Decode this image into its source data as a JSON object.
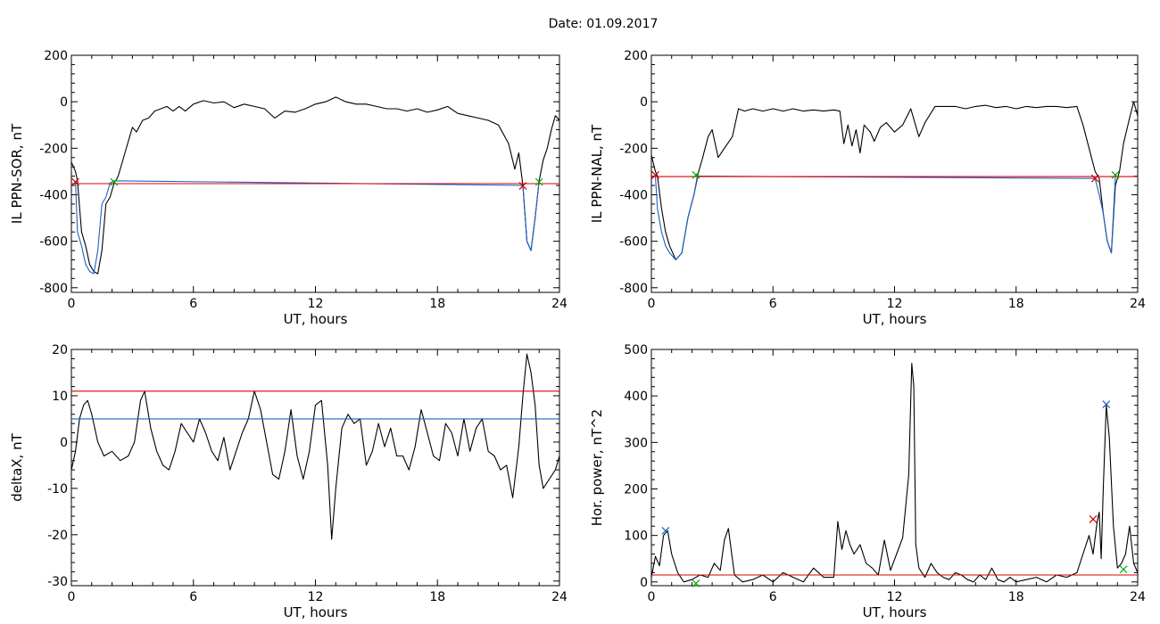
{
  "title": "Date:  01.09.2017",
  "chart_data": [
    {
      "type": "line",
      "ylabel": "IL PPN-SOR, nT",
      "xlabel": "UT, hours",
      "xlim": [
        0,
        24
      ],
      "ylim": [
        -820,
        200
      ],
      "xticks": [
        0,
        6,
        12,
        18,
        24
      ],
      "yticks": [
        200,
        0,
        -200,
        -400,
        -600,
        -800
      ],
      "series": [
        {
          "color": "#000000",
          "x": [
            0.0,
            0.2,
            0.3,
            0.5,
            0.7,
            0.9,
            1.1,
            1.3,
            1.5,
            1.7,
            1.9,
            2.1,
            2.3,
            2.5,
            2.8,
            3.0,
            3.2,
            3.5,
            3.8,
            4.1,
            4.4,
            4.7,
            5.0,
            5.3,
            5.6,
            6.0,
            6.5,
            7.0,
            7.5,
            8.0,
            8.5,
            9.0,
            9.5,
            10.0,
            10.5,
            11.0,
            11.5,
            12.0,
            12.5,
            13.0,
            13.5,
            14.0,
            14.5,
            15.0,
            15.5,
            16.0,
            16.5,
            17.0,
            17.5,
            18.0,
            18.5,
            19.0,
            19.5,
            20.0,
            20.5,
            21.0,
            21.5,
            21.8,
            22.0,
            22.2,
            22.4,
            22.6,
            22.8,
            23.0,
            23.2,
            23.4,
            23.6,
            23.8,
            24.0
          ],
          "y": [
            -260,
            -300,
            -340,
            -560,
            -620,
            -700,
            -730,
            -740,
            -640,
            -440,
            -410,
            -350,
            -320,
            -260,
            -170,
            -110,
            -130,
            -80,
            -70,
            -40,
            -30,
            -20,
            -40,
            -20,
            -40,
            -10,
            5,
            -5,
            0,
            -25,
            -10,
            -20,
            -30,
            -70,
            -40,
            -45,
            -30,
            -10,
            0,
            20,
            0,
            -10,
            -10,
            -20,
            -30,
            -30,
            -40,
            -30,
            -45,
            -35,
            -20,
            -50,
            -60,
            -70,
            -80,
            -100,
            -180,
            -290,
            -220,
            -360,
            -600,
            -640,
            -500,
            -340,
            -250,
            -200,
            -120,
            -60,
            -80
          ]
        },
        {
          "color": "#1f5fc8",
          "x": [
            0.2,
            0.3,
            0.5,
            0.7,
            0.9,
            1.1,
            1.3,
            1.5,
            1.7,
            1.9,
            2.1,
            22.2,
            22.4,
            22.6,
            22.8,
            23.0
          ],
          "y": [
            -340,
            -560,
            -620,
            -700,
            -730,
            -740,
            -640,
            -440,
            -410,
            -350,
            -340,
            -360,
            -600,
            -640,
            -500,
            -340
          ]
        },
        {
          "color": "#dd0000",
          "x": [
            0,
            24
          ],
          "y": [
            -352,
            -352
          ]
        }
      ],
      "markers": [
        {
          "x": 0.2,
          "y": -345,
          "color": "#cc0000"
        },
        {
          "x": 2.1,
          "y": -345,
          "color": "#00aa00"
        },
        {
          "x": 22.2,
          "y": -362,
          "color": "#cc0000"
        },
        {
          "x": 23.0,
          "y": -345,
          "color": "#00aa00"
        }
      ]
    },
    {
      "type": "line",
      "ylabel": "IL PPN-NAL, nT",
      "xlabel": "UT, hours",
      "xlim": [
        0,
        24
      ],
      "ylim": [
        -820,
        200
      ],
      "xticks": [
        0,
        6,
        12,
        18,
        24
      ],
      "yticks": [
        200,
        0,
        -200,
        -400,
        -600,
        -800
      ],
      "series": [
        {
          "color": "#000000",
          "x": [
            0.0,
            0.2,
            0.3,
            0.5,
            0.7,
            0.9,
            1.2,
            1.5,
            1.8,
            2.1,
            2.3,
            2.5,
            2.8,
            3.0,
            3.3,
            3.6,
            4.0,
            4.3,
            4.6,
            5.0,
            5.5,
            6.0,
            6.5,
            7.0,
            7.5,
            8.0,
            8.5,
            9.0,
            9.3,
            9.5,
            9.7,
            9.9,
            10.1,
            10.3,
            10.5,
            10.8,
            11.0,
            11.3,
            11.6,
            12.0,
            12.4,
            12.8,
            13.2,
            13.5,
            14.0,
            14.5,
            15.0,
            15.5,
            16.0,
            16.5,
            17.0,
            17.5,
            18.0,
            18.5,
            19.0,
            19.5,
            20.0,
            20.5,
            21.0,
            21.3,
            21.6,
            21.9,
            22.1,
            22.3,
            22.5,
            22.7,
            22.9,
            23.1,
            23.3,
            23.6,
            23.8,
            24.0
          ],
          "y": [
            -230,
            -300,
            -320,
            -460,
            -560,
            -620,
            -680,
            -650,
            -500,
            -400,
            -310,
            -250,
            -150,
            -120,
            -240,
            -200,
            -150,
            -30,
            -40,
            -30,
            -40,
            -30,
            -40,
            -30,
            -40,
            -35,
            -40,
            -35,
            -40,
            -180,
            -100,
            -190,
            -120,
            -220,
            -100,
            -130,
            -170,
            -110,
            -90,
            -130,
            -100,
            -30,
            -150,
            -90,
            -20,
            -20,
            -20,
            -30,
            -20,
            -15,
            -25,
            -20,
            -30,
            -20,
            -25,
            -20,
            -20,
            -25,
            -20,
            -100,
            -200,
            -300,
            -330,
            -480,
            -600,
            -650,
            -360,
            -300,
            -180,
            -70,
            0,
            -60
          ]
        },
        {
          "color": "#1f5fc8",
          "x": [
            0.2,
            0.3,
            0.5,
            0.7,
            0.9,
            1.2,
            1.5,
            1.8,
            2.1,
            2.3,
            21.9,
            22.1,
            22.3,
            22.5,
            22.7,
            22.9
          ],
          "y": [
            -320,
            -460,
            -560,
            -620,
            -650,
            -680,
            -650,
            -500,
            -400,
            -320,
            -330,
            -400,
            -480,
            -600,
            -650,
            -320
          ]
        },
        {
          "color": "#dd0000",
          "x": [
            0,
            24
          ],
          "y": [
            -322,
            -322
          ]
        }
      ],
      "markers": [
        {
          "x": 0.2,
          "y": -315,
          "color": "#cc0000"
        },
        {
          "x": 2.2,
          "y": -315,
          "color": "#00aa00"
        },
        {
          "x": 21.9,
          "y": -330,
          "color": "#cc0000"
        },
        {
          "x": 22.9,
          "y": -315,
          "color": "#00aa00"
        }
      ]
    },
    {
      "type": "line",
      "ylabel": "deltaX, nT",
      "xlabel": "UT, hours",
      "xlim": [
        0,
        24
      ],
      "ylim": [
        -31,
        20
      ],
      "xticks": [
        0,
        6,
        12,
        18,
        24
      ],
      "yticks": [
        20,
        10,
        0,
        -10,
        -20,
        -30
      ],
      "series": [
        {
          "color": "#000000",
          "x": [
            0.0,
            0.2,
            0.4,
            0.6,
            0.8,
            1.0,
            1.3,
            1.6,
            2.0,
            2.4,
            2.8,
            3.1,
            3.4,
            3.6,
            3.9,
            4.2,
            4.5,
            4.8,
            5.1,
            5.4,
            5.7,
            6.0,
            6.3,
            6.6,
            6.9,
            7.2,
            7.5,
            7.8,
            8.1,
            8.4,
            8.7,
            9.0,
            9.3,
            9.6,
            9.9,
            10.2,
            10.5,
            10.8,
            11.1,
            11.4,
            11.7,
            12.0,
            12.3,
            12.6,
            12.8,
            13.0,
            13.3,
            13.6,
            13.9,
            14.2,
            14.5,
            14.8,
            15.1,
            15.4,
            15.7,
            16.0,
            16.3,
            16.6,
            16.9,
            17.2,
            17.5,
            17.8,
            18.1,
            18.4,
            18.7,
            19.0,
            19.3,
            19.6,
            19.9,
            20.2,
            20.5,
            20.8,
            21.1,
            21.4,
            21.7,
            22.0,
            22.2,
            22.4,
            22.6,
            22.8,
            23.0,
            23.2,
            23.5,
            23.8,
            24.0
          ],
          "y": [
            -6,
            -2,
            5,
            8,
            9,
            6,
            0,
            -3,
            -2,
            -4,
            -3,
            0,
            9,
            11,
            3,
            -2,
            -5,
            -6,
            -2,
            4,
            2,
            0,
            5,
            2,
            -2,
            -4,
            1,
            -6,
            -2,
            2,
            5,
            11,
            7,
            0,
            -7,
            -8,
            -2,
            7,
            -3,
            -8,
            -2,
            8,
            9,
            -5,
            -21,
            -10,
            3,
            6,
            4,
            5,
            -5,
            -2,
            4,
            -1,
            3,
            -3,
            -3,
            -6,
            -1,
            7,
            2,
            -3,
            -4,
            4,
            2,
            -3,
            5,
            -2,
            3,
            5,
            -2,
            -3,
            -6,
            -5,
            -12,
            -1,
            10,
            19,
            15,
            8,
            -5,
            -10,
            -8,
            -6,
            -3
          ]
        },
        {
          "color": "#dd0000",
          "x": [
            0,
            24
          ],
          "y": [
            11,
            11
          ]
        },
        {
          "color": "#1f5fc8",
          "x": [
            0,
            24
          ],
          "y": [
            5,
            5
          ]
        }
      ],
      "markers": []
    },
    {
      "type": "line",
      "ylabel": "Hor. power, nT^2",
      "xlabel": "UT, hours",
      "xlim": [
        0,
        24
      ],
      "ylim": [
        -8,
        500
      ],
      "xticks": [
        0,
        6,
        12,
        18,
        24
      ],
      "yticks": [
        500,
        400,
        300,
        200,
        100,
        0
      ],
      "series": [
        {
          "color": "#000000",
          "x": [
            0.0,
            0.2,
            0.4,
            0.6,
            0.8,
            1.0,
            1.3,
            1.6,
            2.0,
            2.4,
            2.8,
            3.1,
            3.4,
            3.6,
            3.8,
            4.1,
            4.5,
            5.0,
            5.5,
            6.0,
            6.5,
            7.0,
            7.5,
            8.0,
            8.5,
            9.0,
            9.2,
            9.4,
            9.6,
            9.8,
            10.0,
            10.3,
            10.6,
            10.9,
            11.2,
            11.5,
            11.8,
            12.1,
            12.4,
            12.7,
            12.85,
            12.95,
            13.05,
            13.2,
            13.5,
            13.8,
            14.1,
            14.4,
            14.7,
            15.0,
            15.3,
            15.6,
            15.9,
            16.2,
            16.5,
            16.8,
            17.1,
            17.4,
            17.7,
            18.0,
            18.5,
            19.0,
            19.5,
            20.0,
            20.5,
            21.0,
            21.3,
            21.6,
            21.8,
            22.0,
            22.1,
            22.2,
            22.3,
            22.45,
            22.6,
            22.8,
            23.0,
            23.2,
            23.4,
            23.6,
            23.8,
            24.0
          ],
          "y": [
            10,
            55,
            35,
            100,
            110,
            60,
            20,
            0,
            5,
            15,
            10,
            40,
            25,
            90,
            115,
            15,
            0,
            5,
            15,
            0,
            20,
            10,
            0,
            30,
            10,
            10,
            130,
            70,
            110,
            80,
            60,
            80,
            40,
            30,
            15,
            90,
            25,
            60,
            95,
            230,
            470,
            420,
            80,
            30,
            10,
            40,
            20,
            10,
            5,
            20,
            15,
            5,
            0,
            15,
            5,
            30,
            5,
            0,
            10,
            0,
            5,
            10,
            0,
            15,
            10,
            20,
            60,
            100,
            60,
            130,
            150,
            50,
            200,
            380,
            310,
            120,
            30,
            40,
            60,
            120,
            40,
            20
          ]
        },
        {
          "color": "#dd0000",
          "x": [
            0,
            24
          ],
          "y": [
            15,
            15
          ]
        }
      ],
      "markers": [
        {
          "x": 0.7,
          "y": 110,
          "color": "#1f5fc8"
        },
        {
          "x": 2.2,
          "y": -3,
          "color": "#00aa00"
        },
        {
          "x": 21.8,
          "y": 135,
          "color": "#cc0000"
        },
        {
          "x": 22.45,
          "y": 382,
          "color": "#1f5fc8"
        },
        {
          "x": 23.3,
          "y": 27,
          "color": "#00aa00"
        }
      ]
    }
  ]
}
